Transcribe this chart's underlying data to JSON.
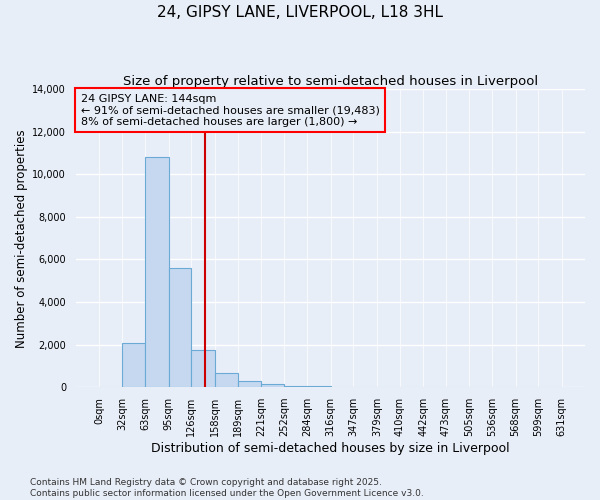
{
  "title": "24, GIPSY LANE, LIVERPOOL, L18 3HL",
  "subtitle": "Size of property relative to semi-detached houses in Liverpool",
  "xlabel": "Distribution of semi-detached houses by size in Liverpool",
  "ylabel": "Number of semi-detached properties",
  "bin_edges": [
    0,
    32,
    63,
    95,
    126,
    158,
    189,
    221,
    252,
    284,
    316,
    347,
    379,
    410,
    442,
    473,
    505,
    536,
    568,
    599,
    631
  ],
  "bar_heights": [
    0,
    2100,
    10800,
    5600,
    1750,
    650,
    300,
    150,
    80,
    80,
    0,
    0,
    0,
    0,
    0,
    0,
    0,
    0,
    0,
    0
  ],
  "bar_color": "#c5d8f0",
  "bar_edgecolor": "#6aaad4",
  "bar_linewidth": 0.8,
  "vline_x": 144,
  "vline_color": "#cc0000",
  "vline_linewidth": 1.5,
  "annotation_text": "24 GIPSY LANE: 144sqm\n← 91% of semi-detached houses are smaller (19,483)\n8% of semi-detached houses are larger (1,800) →",
  "ylim": [
    0,
    14000
  ],
  "yticks": [
    0,
    2000,
    4000,
    6000,
    8000,
    10000,
    12000,
    14000
  ],
  "background_color": "#e8eef8",
  "grid_color": "#ffffff",
  "footer_text": "Contains HM Land Registry data © Crown copyright and database right 2025.\nContains public sector information licensed under the Open Government Licence v3.0.",
  "title_fontsize": 11,
  "subtitle_fontsize": 9.5,
  "xlabel_fontsize": 9,
  "ylabel_fontsize": 8.5,
  "tick_fontsize": 7,
  "annotation_fontsize": 8,
  "footer_fontsize": 6.5
}
